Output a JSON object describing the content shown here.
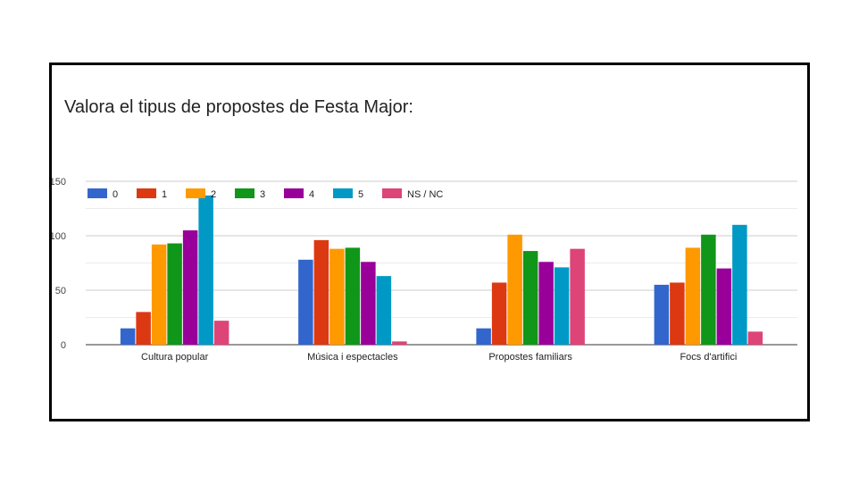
{
  "chart_data": {
    "type": "bar",
    "title": "Valora el tipus de propostes de Festa Major:",
    "xlabel": "",
    "ylabel": "",
    "categories": [
      "Cultura popular",
      "Música i espectacles",
      "Propostes familiars",
      "Focs d'artifici"
    ],
    "series": [
      {
        "name": "0",
        "color": "#3366cc",
        "values": [
          15,
          78,
          15,
          55
        ]
      },
      {
        "name": "1",
        "color": "#dc3912",
        "values": [
          30,
          96,
          57,
          57
        ]
      },
      {
        "name": "2",
        "color": "#ff9900",
        "values": [
          92,
          88,
          101,
          89
        ]
      },
      {
        "name": "3",
        "color": "#109618",
        "values": [
          93,
          89,
          86,
          101
        ]
      },
      {
        "name": "4",
        "color": "#990099",
        "values": [
          105,
          76,
          76,
          70
        ]
      },
      {
        "name": "5",
        "color": "#0099c6",
        "values": [
          137,
          63,
          71,
          110
        ]
      },
      {
        "name": "NS / NC",
        "color": "#dd4477",
        "values": [
          22,
          3,
          88,
          12
        ]
      }
    ],
    "ylim": [
      0,
      150
    ],
    "yticks": [
      0,
      50,
      100,
      150
    ],
    "ytick_labels": [
      "0",
      "50",
      "100",
      "150"
    ],
    "grid": true,
    "legend": "top-left"
  }
}
